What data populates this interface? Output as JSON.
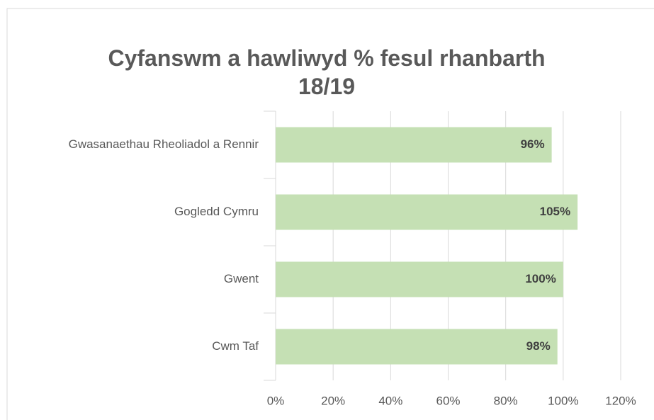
{
  "chart_data": {
    "type": "bar",
    "orientation": "horizontal",
    "title": "Cyfanswm a hawliwyd % fesul rhanbarth 18/19",
    "categories": [
      "Gwasanaethau Rheoliadol a Rennir",
      "Gogledd Cymru",
      "Gwent",
      "Cwm Taf"
    ],
    "values": [
      96,
      105,
      100,
      98
    ],
    "value_labels": [
      "96%",
      "105%",
      "100%",
      "98%"
    ],
    "color": "#c5e0b4",
    "xlim": [
      0,
      120
    ],
    "xticks": [
      {
        "value": 0,
        "label": "0%"
      },
      {
        "value": 20,
        "label": "20%"
      },
      {
        "value": 40,
        "label": "40%"
      },
      {
        "value": 60,
        "label": "60%"
      },
      {
        "value": 80,
        "label": "80%"
      },
      {
        "value": 100,
        "label": "100%"
      },
      {
        "value": 120,
        "label": "120%"
      }
    ],
    "grid": true
  }
}
